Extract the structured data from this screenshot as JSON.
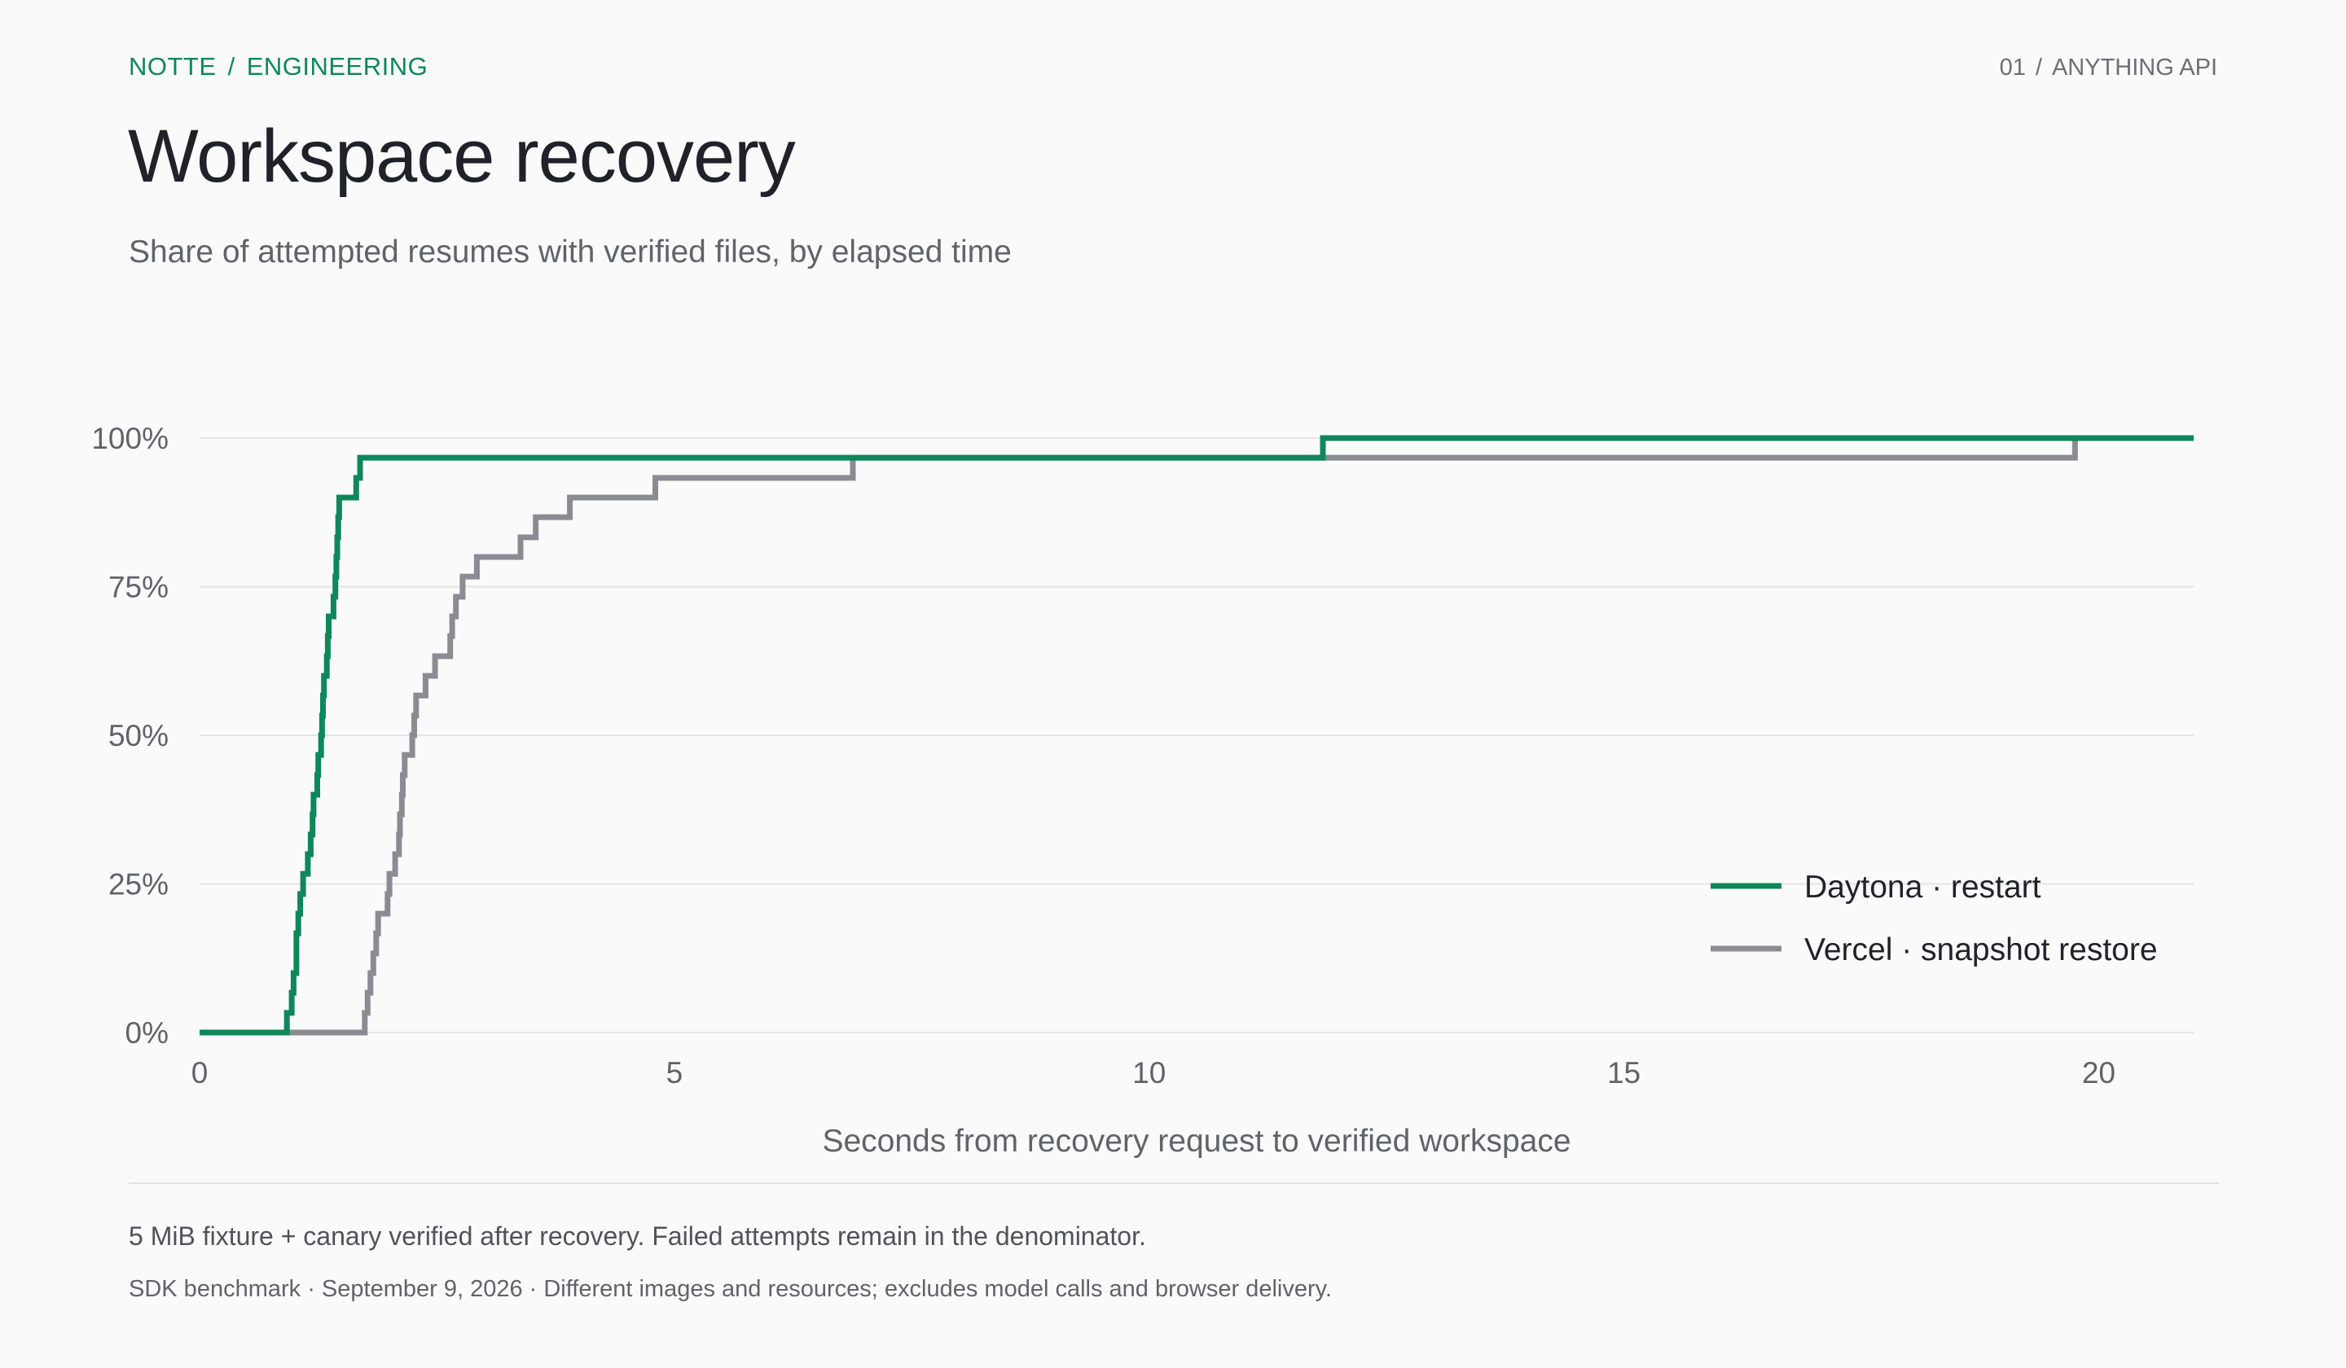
{
  "header": {
    "breadcrumb": [
      "NOTTE",
      "ENGINEERING"
    ],
    "page_number": "01",
    "page_label": "ANYTHING API"
  },
  "title": "Workspace recovery",
  "subtitle": "Share of attempted resumes with verified files, by elapsed time",
  "chart_data": {
    "type": "line",
    "step": true,
    "title": "Workspace recovery",
    "subtitle": "Share of attempted resumes with verified files, by elapsed time",
    "xlabel": "Seconds from recovery request to verified workspace",
    "ylabel": "",
    "xlim": [
      0,
      21
    ],
    "ylim": [
      0,
      100
    ],
    "x_ticks": [
      0,
      5,
      10,
      15,
      20
    ],
    "x_tick_labels": [
      "0",
      "5",
      "10",
      "15",
      "20"
    ],
    "y_ticks": [
      0,
      25,
      50,
      75,
      100
    ],
    "y_tick_labels": [
      "0%",
      "25%",
      "50%",
      "75%",
      "100%"
    ],
    "grid": "horizontal",
    "legend_position": "bottom-right",
    "series": [
      {
        "name": "Daytona · restart",
        "color": "#0e875a",
        "points": [
          [
            0,
            0
          ],
          [
            0.92,
            0
          ],
          [
            0.92,
            3.3
          ],
          [
            0.97,
            3.3
          ],
          [
            0.97,
            6.7
          ],
          [
            0.99,
            6.7
          ],
          [
            0.99,
            10
          ],
          [
            1.02,
            10
          ],
          [
            1.02,
            13.3
          ],
          [
            1.02,
            16.7
          ],
          [
            1.04,
            16.7
          ],
          [
            1.04,
            20
          ],
          [
            1.06,
            20
          ],
          [
            1.06,
            23.3
          ],
          [
            1.09,
            23.3
          ],
          [
            1.09,
            26.7
          ],
          [
            1.14,
            26.7
          ],
          [
            1.14,
            30
          ],
          [
            1.17,
            30
          ],
          [
            1.17,
            33.3
          ],
          [
            1.19,
            33.3
          ],
          [
            1.19,
            36.7
          ],
          [
            1.2,
            36.7
          ],
          [
            1.2,
            40
          ],
          [
            1.24,
            40
          ],
          [
            1.24,
            43.3
          ],
          [
            1.25,
            43.3
          ],
          [
            1.25,
            46.7
          ],
          [
            1.28,
            46.7
          ],
          [
            1.28,
            50
          ],
          [
            1.29,
            50
          ],
          [
            1.29,
            53.3
          ],
          [
            1.3,
            53.3
          ],
          [
            1.3,
            56.7
          ],
          [
            1.31,
            56.7
          ],
          [
            1.31,
            60
          ],
          [
            1.34,
            60
          ],
          [
            1.34,
            63.3
          ],
          [
            1.35,
            63.3
          ],
          [
            1.35,
            66.7
          ],
          [
            1.36,
            66.7
          ],
          [
            1.36,
            70
          ],
          [
            1.41,
            70
          ],
          [
            1.41,
            73.3
          ],
          [
            1.43,
            73.3
          ],
          [
            1.43,
            76.7
          ],
          [
            1.44,
            76.7
          ],
          [
            1.44,
            80
          ],
          [
            1.45,
            80
          ],
          [
            1.45,
            83.3
          ],
          [
            1.46,
            83.3
          ],
          [
            1.46,
            86.7
          ],
          [
            1.47,
            86.7
          ],
          [
            1.47,
            90
          ],
          [
            1.65,
            90
          ],
          [
            1.65,
            93.3
          ],
          [
            1.69,
            93.3
          ],
          [
            1.69,
            96.7
          ],
          [
            11.83,
            96.7
          ],
          [
            11.83,
            100
          ],
          [
            21,
            100
          ]
        ]
      },
      {
        "name": "Vercel · snapshot restore",
        "color": "#8b8b93",
        "points": [
          [
            0,
            0
          ],
          [
            1.74,
            0
          ],
          [
            1.74,
            3.3
          ],
          [
            1.77,
            3.3
          ],
          [
            1.77,
            6.7
          ],
          [
            1.8,
            6.7
          ],
          [
            1.8,
            10
          ],
          [
            1.83,
            10
          ],
          [
            1.83,
            13.3
          ],
          [
            1.86,
            13.3
          ],
          [
            1.86,
            16.7
          ],
          [
            1.88,
            16.7
          ],
          [
            1.88,
            20
          ],
          [
            1.98,
            20
          ],
          [
            1.98,
            23.3
          ],
          [
            2.0,
            23.3
          ],
          [
            2.0,
            26.7
          ],
          [
            2.06,
            26.7
          ],
          [
            2.06,
            30
          ],
          [
            2.1,
            30
          ],
          [
            2.1,
            33.3
          ],
          [
            2.11,
            33.3
          ],
          [
            2.11,
            36.7
          ],
          [
            2.13,
            36.7
          ],
          [
            2.13,
            40
          ],
          [
            2.14,
            40
          ],
          [
            2.14,
            43.3
          ],
          [
            2.16,
            43.3
          ],
          [
            2.16,
            46.7
          ],
          [
            2.24,
            46.7
          ],
          [
            2.24,
            50
          ],
          [
            2.26,
            50
          ],
          [
            2.26,
            53.3
          ],
          [
            2.28,
            53.3
          ],
          [
            2.28,
            56.7
          ],
          [
            2.38,
            56.7
          ],
          [
            2.38,
            60
          ],
          [
            2.48,
            60
          ],
          [
            2.48,
            63.3
          ],
          [
            2.64,
            63.3
          ],
          [
            2.64,
            66.7
          ],
          [
            2.66,
            66.7
          ],
          [
            2.66,
            70
          ],
          [
            2.7,
            70
          ],
          [
            2.7,
            73.3
          ],
          [
            2.77,
            73.3
          ],
          [
            2.77,
            76.7
          ],
          [
            2.92,
            76.7
          ],
          [
            2.92,
            80
          ],
          [
            3.38,
            80
          ],
          [
            3.38,
            83.3
          ],
          [
            3.54,
            83.3
          ],
          [
            3.54,
            86.7
          ],
          [
            3.9,
            86.7
          ],
          [
            3.9,
            90
          ],
          [
            4.8,
            90
          ],
          [
            4.8,
            93.3
          ],
          [
            6.88,
            93.3
          ],
          [
            6.88,
            96.7
          ],
          [
            19.75,
            96.7
          ],
          [
            19.75,
            100
          ],
          [
            21,
            100
          ]
        ]
      }
    ]
  },
  "footer": {
    "note": "5 MiB fixture + canary verified after recovery. Failed attempts remain in the denominator.",
    "source": "SDK benchmark · September 9, 2026 · Different images and resources; excludes model calls and browser delivery."
  }
}
